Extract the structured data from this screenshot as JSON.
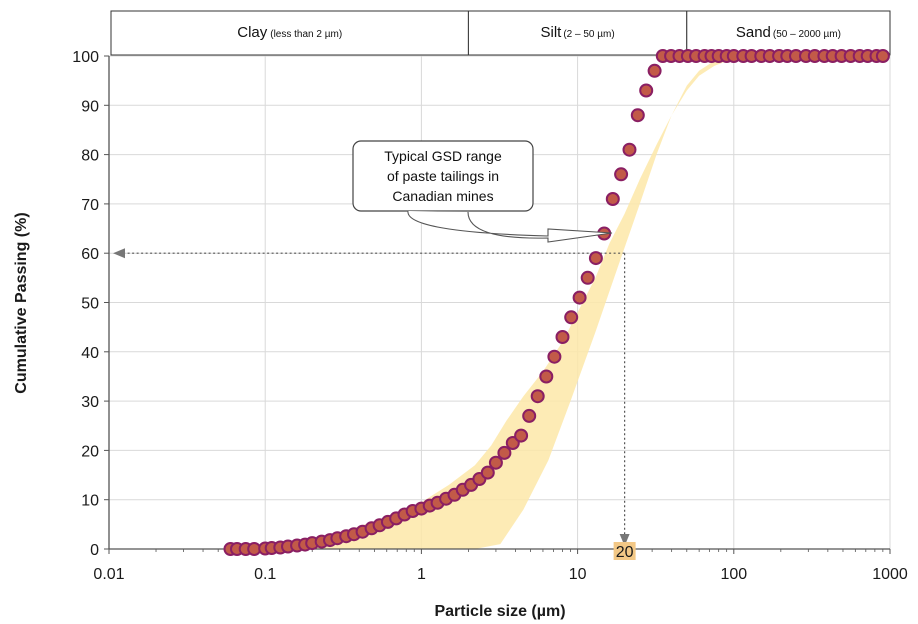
{
  "chart_data": {
    "type": "scatter",
    "xscale": "log",
    "xlim": [
      0.01,
      1000
    ],
    "ylim": [
      0,
      100
    ],
    "xlabel": "Particle size (µm)",
    "ylabel": "Cumulative Passing (%)",
    "xticks": [
      "0.01",
      "0.1",
      "1",
      "10",
      "100",
      "1000"
    ],
    "yticks": [
      "0",
      "10",
      "20",
      "30",
      "40",
      "50",
      "60",
      "70",
      "80",
      "90",
      "100"
    ],
    "grid": true,
    "size_classes": [
      {
        "name": "Clay",
        "range": "(less than 2 µm)",
        "from": 0.01,
        "to": 2
      },
      {
        "name": "Silt",
        "range": "(2 – 50 µm)",
        "from": 2,
        "to": 50
      },
      {
        "name": "Sand",
        "range": "(50 – 2000 µm)",
        "from": 50,
        "to": 1000
      }
    ],
    "series": [
      {
        "marker_fill": "#c25a48",
        "marker_edge": "#8a1f63",
        "x": [
          0.06,
          0.066,
          0.075,
          0.085,
          0.1,
          0.11,
          0.125,
          0.14,
          0.16,
          0.18,
          0.2,
          0.23,
          0.26,
          0.29,
          0.33,
          0.37,
          0.42,
          0.48,
          0.54,
          0.61,
          0.69,
          0.78,
          0.88,
          1.0,
          1.13,
          1.27,
          1.44,
          1.63,
          1.84,
          2.08,
          2.35,
          2.66,
          3.0,
          3.4,
          3.85,
          4.35,
          4.9,
          5.55,
          6.3,
          7.1,
          8.0,
          9.1,
          10.3,
          11.6,
          13.1,
          14.8,
          16.8,
          19.0,
          21.5,
          24.3,
          27.5,
          31.1,
          35.1,
          39.7,
          44.9,
          50.8,
          57.4,
          65,
          72,
          80,
          90,
          100,
          115,
          130,
          150,
          170,
          195,
          220,
          250,
          290,
          330,
          380,
          430,
          490,
          560,
          640,
          720,
          820,
          900
        ],
        "y": [
          0,
          0,
          0,
          0,
          0.1,
          0.2,
          0.3,
          0.5,
          0.7,
          0.9,
          1.2,
          1.5,
          1.8,
          2.2,
          2.6,
          3.0,
          3.5,
          4.2,
          4.8,
          5.5,
          6.2,
          7.0,
          7.7,
          8.2,
          8.8,
          9.4,
          10.2,
          11.0,
          12.0,
          13.0,
          14.2,
          15.5,
          17.5,
          19.5,
          21.5,
          23.0,
          27.0,
          31.0,
          35.0,
          39.0,
          43.0,
          47.0,
          51.0,
          55.0,
          59.0,
          64.0,
          71.0,
          76.0,
          81.0,
          88.0,
          93.0,
          97.0,
          100,
          100,
          100,
          100,
          100,
          100,
          100,
          100,
          100,
          100,
          100,
          100,
          100,
          100,
          100,
          100,
          100,
          100,
          100,
          100,
          100,
          100,
          100,
          100,
          100,
          100,
          100
        ]
      }
    ],
    "range_band": {
      "lower_x": [
        0.1,
        0.3,
        0.8,
        1.5,
        2.2,
        3.2,
        4.5,
        6.5,
        9,
        13,
        18,
        25,
        32,
        40,
        50,
        60,
        75,
        110,
        200,
        300,
        1000
      ],
      "lower_y": [
        0,
        0,
        0,
        0,
        0,
        1,
        8,
        18,
        30,
        44,
        57,
        70,
        80,
        88,
        94,
        97,
        99,
        100,
        100,
        100,
        100
      ],
      "upper_x": [
        0.1,
        0.2,
        0.35,
        0.6,
        1.0,
        1.5,
        2.2,
        2.8,
        3.5,
        4.5,
        6,
        8,
        10,
        13,
        16,
        20,
        25,
        32,
        40,
        50,
        60,
        75,
        100,
        130,
        170,
        230,
        300
      ],
      "upper_y": [
        0,
        2,
        4,
        6.5,
        9.5,
        13,
        17,
        21,
        26,
        31,
        36,
        42,
        48,
        55,
        62,
        68,
        75,
        82,
        88,
        93,
        96,
        98,
        99.5,
        100,
        100,
        100,
        100
      ]
    },
    "annotations": {
      "callout_lines": [
        "Typical GSD range",
        "of paste tailings in",
        "Canadian mines"
      ],
      "d60_value": "20",
      "d60_x": 20,
      "d60_y": 60
    },
    "colors": {
      "band_fill": "#fde8a8",
      "grid": "#d9d9d9",
      "axis": "#555555",
      "dotted_line": "#555555",
      "d60_badge": "#f3c886"
    }
  }
}
